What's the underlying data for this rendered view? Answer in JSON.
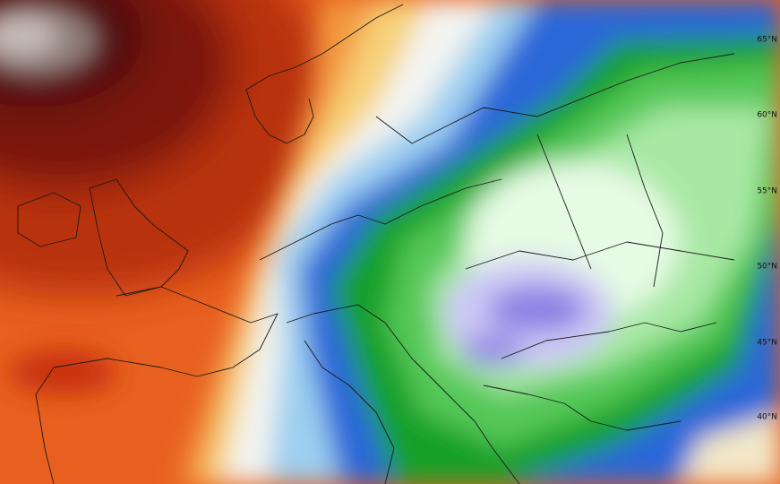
{
  "map": {
    "latitude_labels": [
      "65°N",
      "60°N",
      "55°N",
      "50°N",
      "45°N",
      "40°N"
    ]
  }
}
